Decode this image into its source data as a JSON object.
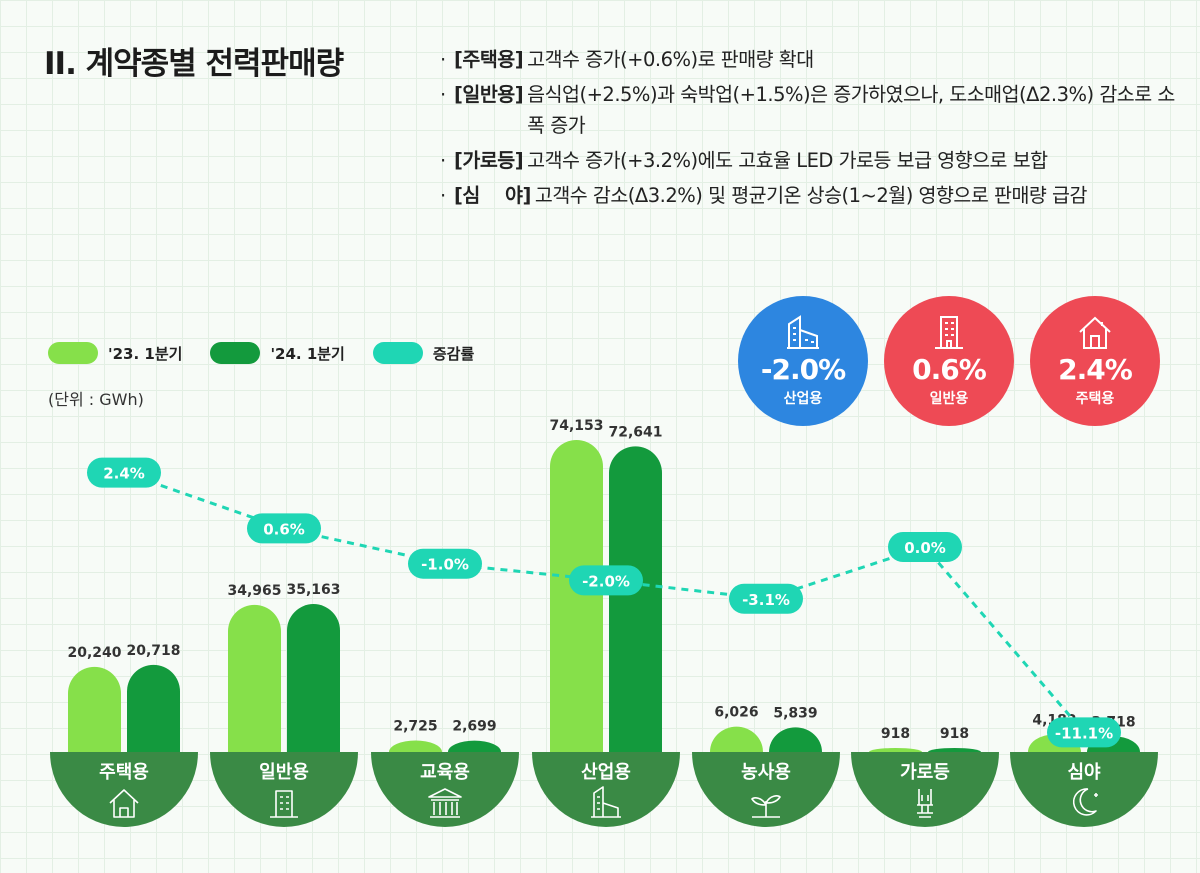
{
  "title": "II. 계약종별 전력판매량",
  "notes": [
    {
      "tag": "[주택용]",
      "text": "고객수 증가(+0.6%)로 판매량 확대"
    },
    {
      "tag": "[일반용]",
      "text": "음식업(+2.5%)과 숙박업(+1.5%)은 증가하였으나, 도소매업(Δ2.3%) 감소로 소폭 증가"
    },
    {
      "tag": "[가로등]",
      "text": "고객수 증가(+3.2%)에도 고효율 LED 가로등 보급 영향으로 보합"
    },
    {
      "tag": "[심    야]",
      "text": "고객수 감소(Δ3.2%) 및 평균기온 상승(1~2월) 영향으로 판매량 급감"
    }
  ],
  "legend": [
    "'23. 1분기",
    "'24. 1분기",
    "증감률"
  ],
  "unit": "(단위 : GWh)",
  "summary": [
    {
      "value": "-2.0%",
      "label": "산업용",
      "color": "#2d86e0",
      "icon": "factory-icon"
    },
    {
      "value": "0.6%",
      "label": "일반용",
      "color": "#ee4a55",
      "icon": "building-icon"
    },
    {
      "value": "2.4%",
      "label": "주택용",
      "color": "#ee4a55",
      "icon": "house-icon"
    }
  ],
  "colors": {
    "q23": "#86e04a",
    "q24": "#139a3d",
    "rate": "#1fd6b4",
    "base": "#3a8a45"
  },
  "chart_data": {
    "type": "bar",
    "categories": [
      "주택용",
      "일반용",
      "교육용",
      "산업용",
      "농사용",
      "가로등",
      "심야"
    ],
    "icons": [
      "house-icon",
      "office-building-icon",
      "school-icon",
      "factory-icon",
      "sprout-icon",
      "streetlight-icon",
      "moon-icon"
    ],
    "series": [
      {
        "name": "'23. 1분기",
        "values": [
          20240,
          34965,
          2725,
          74153,
          6026,
          918,
          4182
        ],
        "labels": [
          "20,240",
          "34,965",
          "2,725",
          "74,153",
          "6,026",
          "918",
          "4,182"
        ]
      },
      {
        "name": "'24. 1분기",
        "values": [
          20718,
          35163,
          2699,
          72641,
          5839,
          918,
          3718
        ],
        "labels": [
          "20,718",
          "35,163",
          "2,699",
          "72,641",
          "5,839",
          "918",
          "3,718"
        ]
      }
    ],
    "rate": {
      "name": "증감률",
      "values": [
        2.4,
        0.6,
        -1.0,
        -2.0,
        -3.1,
        0.0,
        -11.1
      ],
      "labels": [
        "2.4%",
        "0.6%",
        "-1.0%",
        "-2.0%",
        "-3.1%",
        "0.0%",
        "-11.1%"
      ]
    },
    "ylabel": "GWh",
    "ylim": [
      0,
      74153
    ]
  }
}
